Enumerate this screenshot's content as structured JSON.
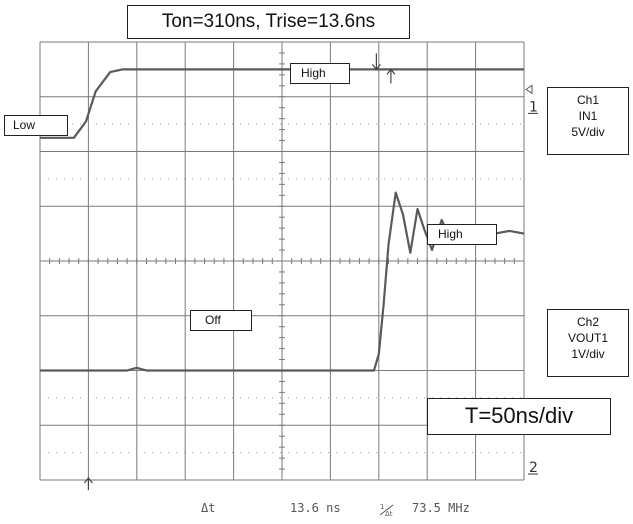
{
  "chart_data": {
    "type": "line",
    "title": "Ton=310ns, Trise=13.6ns",
    "timebase": "T=50ns/div",
    "grid": true,
    "divisions": {
      "x": 10,
      "y": 8
    },
    "channels": [
      {
        "id": "Ch1",
        "signal": "IN1",
        "scale": "5V/div",
        "marker": "1",
        "levels": {
          "low": "Low",
          "high": "High"
        },
        "rise_time_ns": 13.6
      },
      {
        "id": "Ch2",
        "signal": "VOUT1",
        "scale": "1V/div",
        "marker": "2",
        "levels": {
          "off": "Off",
          "high": "High"
        }
      }
    ],
    "series": [
      {
        "name": "Ch1 IN1",
        "t_div": [
          0,
          0.7,
          0.95,
          1.15,
          1.45,
          1.7,
          2.0,
          10.0
        ],
        "v_div": [
          6.25,
          6.25,
          6.55,
          7.1,
          7.45,
          7.5,
          7.5,
          7.5
        ]
      },
      {
        "name": "Ch2 VOUT1",
        "t_div": [
          0,
          1.8,
          2.0,
          2.2,
          6.9,
          7.0,
          7.1,
          7.2,
          7.35,
          7.5,
          7.65,
          7.8,
          7.95,
          8.1,
          8.3,
          8.5,
          8.7,
          8.9,
          9.1,
          9.4,
          9.7,
          10.0
        ],
        "v_div": [
          2.0,
          2.0,
          2.05,
          2.0,
          2.0,
          2.3,
          3.2,
          4.3,
          5.25,
          4.85,
          4.15,
          4.95,
          4.55,
          4.2,
          4.75,
          4.35,
          4.65,
          4.4,
          4.6,
          4.5,
          4.55,
          4.5
        ]
      }
    ]
  },
  "labels": {
    "low": "Low",
    "high_ch1": "High",
    "high_ch2": "High",
    "off": "Off"
  },
  "ch1_box": {
    "ch": "Ch1",
    "signal": "IN1",
    "scale": "5V/div"
  },
  "ch2_box": {
    "ch": "Ch2",
    "signal": "VOUT1",
    "scale": "1V/div"
  },
  "readout": {
    "dt_label": "Δt",
    "dt_value": "13.6 ns",
    "inv_label": "1/Δt",
    "freq_value": "73.5 MHz"
  },
  "colors": {
    "trace": "#5a5a5a",
    "grid": "#7a7a7a",
    "graticule_dots": "#9a9a9a"
  }
}
